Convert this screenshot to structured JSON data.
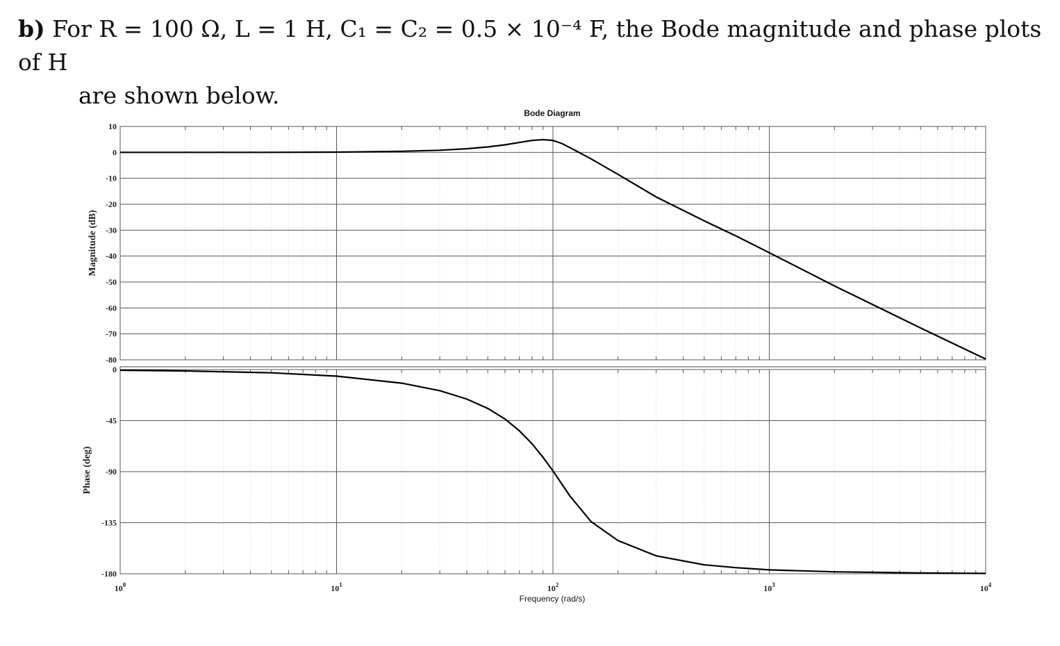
{
  "problem": {
    "label": "b)",
    "line1": "For R = 100 Ω, L = 1 H, C₁ = C₂ = 0.5 × 10⁻⁴ F, the Bode magnitude and phase plots of H",
    "line2": "are shown below."
  },
  "chart_data": {
    "type": "line",
    "title": "Bode Diagram",
    "xlabel": "Frequency  (rad/s)",
    "x_scale": "log",
    "xlim": [
      1,
      10000
    ],
    "x_ticks": [
      {
        "value": 1,
        "base": "10",
        "exp": "0"
      },
      {
        "value": 10,
        "base": "10",
        "exp": "1"
      },
      {
        "value": 100,
        "base": "10",
        "exp": "2"
      },
      {
        "value": 1000,
        "base": "10",
        "exp": "3"
      },
      {
        "value": 10000,
        "base": "10",
        "exp": "4"
      }
    ],
    "grid": true,
    "magnitude": {
      "ylabel": "Magnitude (dB)",
      "ylim": [
        -80,
        10
      ],
      "yticks": [
        "10",
        "0",
        "-10",
        "-20",
        "-30",
        "-40",
        "-50",
        "-60",
        "-70",
        "-80"
      ],
      "x": [
        1,
        2,
        5,
        10,
        20,
        30,
        40,
        50,
        60,
        70,
        80,
        90,
        100,
        110,
        120,
        150,
        200,
        300,
        500,
        700,
        1000,
        2000,
        5000,
        10000
      ],
      "y": [
        0,
        0,
        0.02,
        0.1,
        0.4,
        0.8,
        1.4,
        2.1,
        2.9,
        3.8,
        4.6,
        4.9,
        4.6,
        3.4,
        1.8,
        -2.5,
        -8.5,
        -17.2,
        -26.4,
        -32.2,
        -38.7,
        -51.5,
        -67.7,
        -79.7
      ]
    },
    "phase": {
      "ylabel": "Phase (deg)",
      "ylim": [
        -180,
        0
      ],
      "yticks": [
        "0",
        "-45",
        "-90",
        "-135",
        "-180"
      ],
      "x": [
        1,
        2,
        5,
        10,
        20,
        30,
        40,
        50,
        60,
        70,
        80,
        90,
        100,
        110,
        120,
        150,
        200,
        300,
        500,
        700,
        1000,
        2000,
        5000,
        10000
      ],
      "y": [
        -0.6,
        -1.2,
        -2.9,
        -5.8,
        -12,
        -18.6,
        -26,
        -34.3,
        -43.6,
        -54,
        -65.3,
        -77.3,
        -89.2,
        -101,
        -111.6,
        -134,
        -150.8,
        -164.2,
        -172.1,
        -174.6,
        -176.6,
        -178.3,
        -179.3,
        -179.7
      ]
    }
  }
}
